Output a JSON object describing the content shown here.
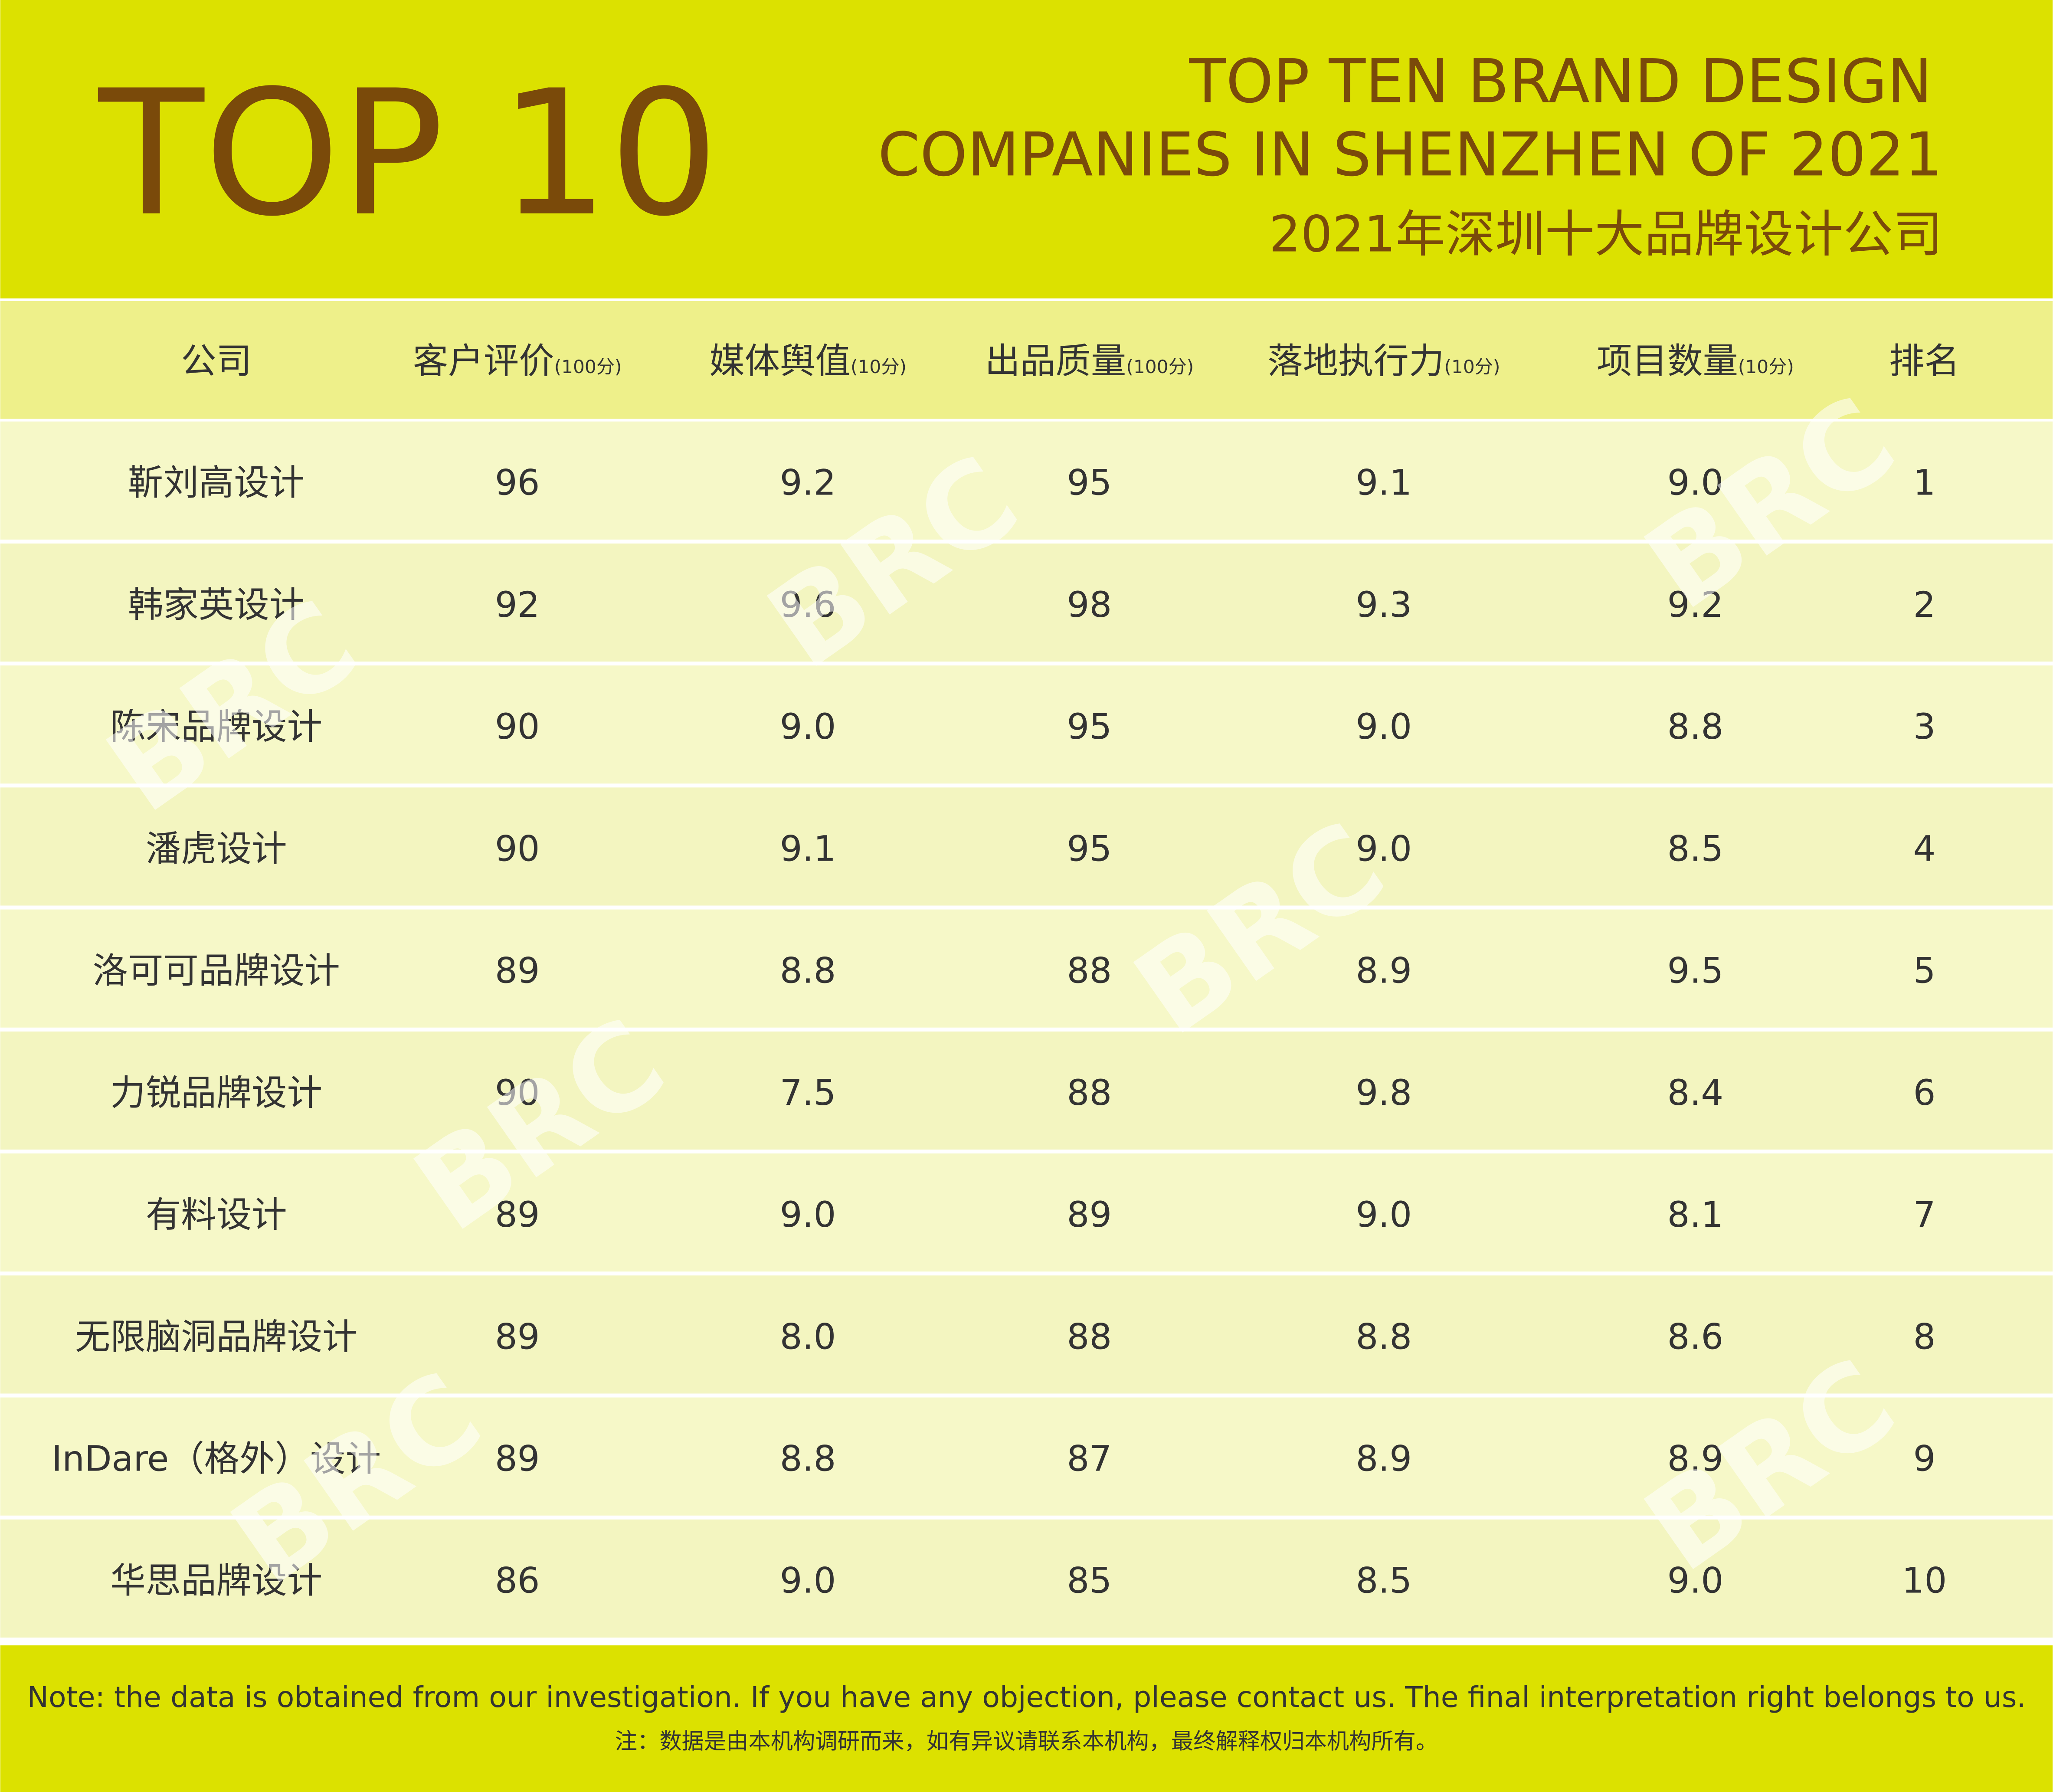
{
  "header": {
    "big_title": "TOP 10",
    "title_line1": "TOP TEN BRAND DESIGN",
    "title_line2": "COMPANIES IN SHENZHEN OF 2021",
    "subtitle": "2021年深圳十大品牌设计公司"
  },
  "table": {
    "columns": [
      {
        "label": "公司"
      },
      {
        "label": "客户评价",
        "unit": "(100分)"
      },
      {
        "label": "媒体舆值",
        "unit": "(10分)"
      },
      {
        "label": "出品质量",
        "unit": "(100分)"
      },
      {
        "label": "落地执行力",
        "unit": "(10分)"
      },
      {
        "label": "项目数量",
        "unit": "(10分)"
      },
      {
        "label": "排名"
      }
    ],
    "rows": [
      [
        "靳刘高设计",
        "96",
        "9.2",
        "95",
        "9.1",
        "9.0",
        "1"
      ],
      [
        "韩家英设计",
        "92",
        "9.6",
        "98",
        "9.3",
        "9.2",
        "2"
      ],
      [
        "陈宋品牌设计",
        "90",
        "9.0",
        "95",
        "9.0",
        "8.8",
        "3"
      ],
      [
        "潘虎设计",
        "90",
        "9.1",
        "95",
        "9.0",
        "8.5",
        "4"
      ],
      [
        "洛可可品牌设计",
        "89",
        "8.8",
        "88",
        "8.9",
        "9.5",
        "5"
      ],
      [
        "力锐品牌设计",
        "90",
        "7.5",
        "88",
        "9.8",
        "8.4",
        "6"
      ],
      [
        "有料设计",
        "89",
        "9.0",
        "89",
        "9.0",
        "8.1",
        "7"
      ],
      [
        "无限脑洞品牌设计",
        "89",
        "8.0",
        "88",
        "8.8",
        "8.6",
        "8"
      ],
      [
        "InDare（格外）设计",
        "89",
        "8.8",
        "87",
        "8.9",
        "8.9",
        "9"
      ],
      [
        "华思品牌设计",
        "86",
        "9.0",
        "85",
        "8.5",
        "9.0",
        "10"
      ]
    ]
  },
  "watermark": "BRC",
  "footer": {
    "note_en": "Note: the data is obtained from our investigation. If you have any objection, please contact us. The final interpretation right belongs to us.",
    "note_cn": "注：数据是由本机构调研而来，如有异议请联系本机构，最终解释权归本机构所有。"
  }
}
